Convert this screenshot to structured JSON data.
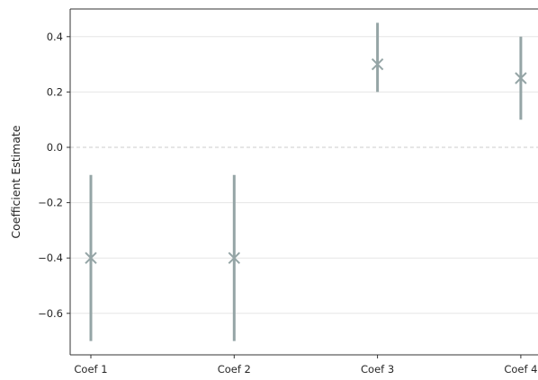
{
  "chart_data": {
    "type": "scatter",
    "title": "",
    "xlabel": "",
    "ylabel": "Coefficient Estimate",
    "categories": [
      "Coef 1",
      "Coef 2",
      "Coef 3",
      "Coef 4"
    ],
    "estimates": [
      -0.4,
      -0.4,
      0.3,
      0.25
    ],
    "ci_lower": [
      -0.7,
      -0.7,
      0.2,
      0.1
    ],
    "ci_upper": [
      -0.1,
      -0.1,
      0.45,
      0.4
    ],
    "ylim": [
      -0.75,
      0.5
    ],
    "yticks": [
      -0.6,
      -0.4,
      -0.2,
      0.0,
      0.2,
      0.4
    ],
    "ytick_labels": [
      "−0.6",
      "−0.4",
      "−0.2",
      "0.0",
      "0.2",
      "0.4"
    ],
    "reference_line": 0.0,
    "grid": true,
    "colors": {
      "marker": "#95a5a6",
      "errorbar": "#95a5a6",
      "grid": "#e6e6e6",
      "reference_line": "#cccccc",
      "axis": "#333333"
    }
  }
}
